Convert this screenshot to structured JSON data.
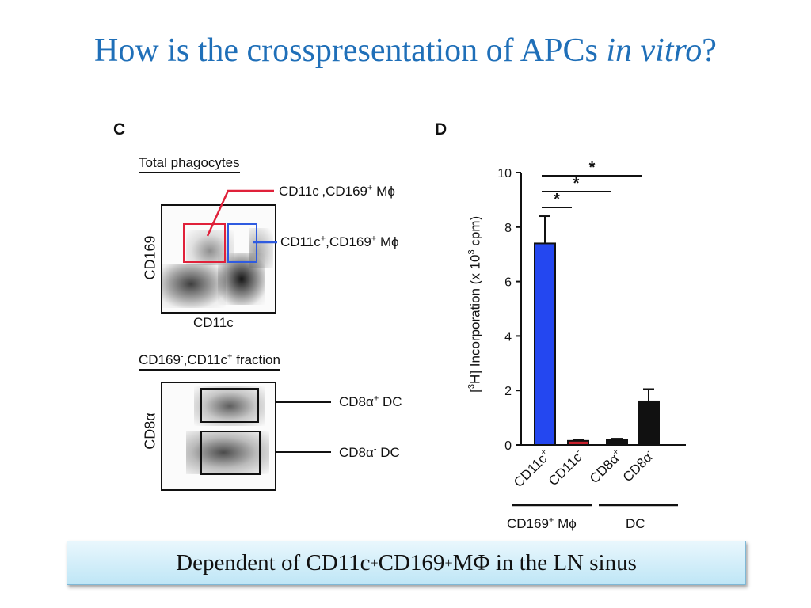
{
  "slide": {
    "title_main": "How is the crosspresentation of APCs ",
    "title_italic": "in vitro",
    "title_end": "?"
  },
  "panel_c": {
    "letter": "C",
    "top_plot": {
      "title": "Total phagocytes",
      "y_label": "CD169",
      "x_label": "CD11c",
      "gate_red_label": {
        "a": "CD11c",
        "a_sup": "-",
        "b": ",CD169",
        "b_sup": "+",
        "c": " Mϕ"
      },
      "gate_blue_label": {
        "a": "CD11c",
        "a_sup": "+",
        "b": ",CD169",
        "b_sup": "+",
        "c": " Mϕ"
      },
      "gate_red_color": "#e0213a",
      "gate_blue_color": "#2f5be0"
    },
    "bottom_plot": {
      "title": {
        "a": "CD169",
        "a_sup": "-",
        "b": ",CD11c",
        "b_sup": "+",
        "c": " fraction"
      },
      "y_label": "CD8α",
      "gate_top_label": {
        "a": "CD8α",
        "a_sup": "+",
        "b": " DC"
      },
      "gate_bottom_label": {
        "a": "CD8α",
        "a_sup": "-",
        "b": " DC"
      }
    }
  },
  "panel_d": {
    "letter": "D",
    "y_label_parts": [
      "[",
      "3",
      "H] Incorporation (x 10",
      "3",
      " cpm)"
    ],
    "group_labels": {
      "macrophage": {
        "a": "CD169",
        "a_sup": "+",
        "b": " Mϕ"
      },
      "dc": "DC"
    },
    "significance_marks": [
      "*",
      "*",
      "*"
    ]
  },
  "chart_data": {
    "type": "bar",
    "categories": [
      "CD11c+",
      "CD11c-",
      "CD8α+",
      "CD8α-"
    ],
    "category_labels": [
      {
        "base": "CD11c",
        "sup": "+"
      },
      {
        "base": "CD11c",
        "sup": "-"
      },
      {
        "base": "CD8α",
        "sup": "+"
      },
      {
        "base": "CD8α",
        "sup": "-"
      }
    ],
    "values": [
      7.4,
      0.15,
      0.18,
      1.6
    ],
    "errors": [
      1.0,
      0.05,
      0.05,
      0.45
    ],
    "colors": [
      "#2447f0",
      "#c8202c",
      "#111111",
      "#111111"
    ],
    "groups": [
      {
        "name": "CD169+ Mϕ",
        "members": [
          0,
          1
        ]
      },
      {
        "name": "DC",
        "members": [
          2,
          3
        ]
      }
    ],
    "significance": [
      {
        "from": 0,
        "to": 1,
        "label": "*"
      },
      {
        "from": 0,
        "to": 2,
        "label": "*"
      },
      {
        "from": 0,
        "to": 3,
        "label": "*"
      }
    ],
    "ylabel": "[3H] Incorporation (x 10^3 cpm)",
    "yticks": [
      0,
      2,
      4,
      6,
      8,
      10
    ],
    "ylim": [
      0,
      10
    ],
    "grid": false
  },
  "caption": {
    "a": "Dependent of CD11c",
    "a_sup": "+",
    "b": " CD169",
    "b_sup": "+",
    "c": " MΦ in the LN sinus"
  }
}
